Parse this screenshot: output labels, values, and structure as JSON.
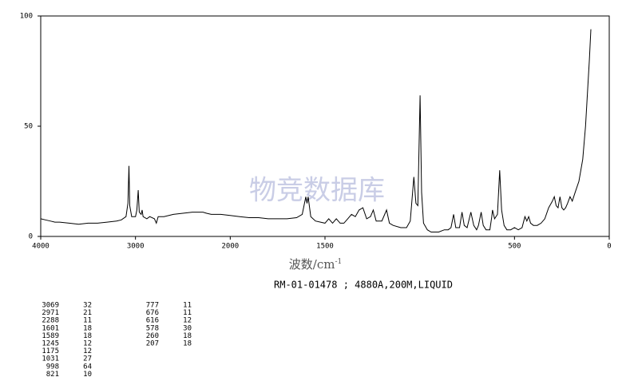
{
  "chart_data": {
    "type": "line",
    "x_label": "波数/cm",
    "x_label_sup": "-1",
    "subtitle": "RM-01-01478 ; 4880A,200M,LIQUID",
    "watermark": "物竞数据库",
    "xlim": [
      4000,
      0
    ],
    "xticks": [
      4000,
      3000,
      2000,
      1500,
      500,
      0
    ],
    "x_scale": {
      "break": 2000,
      "compression_above_break": 0.5
    },
    "ylim": [
      0,
      100
    ],
    "yticks": [
      0,
      50,
      100
    ],
    "color": "#000000",
    "x": [
      4000,
      3950,
      3900,
      3850,
      3800,
      3700,
      3600,
      3500,
      3400,
      3300,
      3200,
      3150,
      3100,
      3080,
      3069,
      3060,
      3040,
      3000,
      2985,
      2971,
      2960,
      2940,
      2930,
      2920,
      2880,
      2850,
      2800,
      2780,
      2760,
      2700,
      2600,
      2500,
      2400,
      2300,
      2288,
      2250,
      2200,
      2100,
      2000,
      1950,
      1900,
      1850,
      1800,
      1750,
      1700,
      1650,
      1620,
      1601,
      1595,
      1589,
      1575,
      1550,
      1500,
      1480,
      1460,
      1440,
      1420,
      1400,
      1380,
      1360,
      1340,
      1320,
      1300,
      1280,
      1260,
      1245,
      1230,
      1200,
      1175,
      1160,
      1140,
      1100,
      1070,
      1050,
      1031,
      1020,
      1010,
      998,
      990,
      980,
      960,
      940,
      900,
      870,
      850,
      835,
      821,
      810,
      790,
      777,
      765,
      750,
      730,
      715,
      700,
      690,
      676,
      665,
      650,
      630,
      620,
      616,
      605,
      590,
      578,
      568,
      555,
      540,
      520,
      500,
      480,
      460,
      445,
      435,
      425,
      415,
      400,
      380,
      360,
      340,
      320,
      300,
      290,
      280,
      270,
      260,
      250,
      240,
      230,
      220,
      207,
      195,
      180,
      160,
      140,
      125,
      115,
      105,
      97
    ],
    "values": [
      8,
      7.5,
      7,
      6.5,
      6.5,
      6,
      5.5,
      6,
      6,
      6.5,
      7,
      7.5,
      9,
      15,
      32,
      14,
      9,
      9,
      12,
      21,
      11,
      10,
      12,
      9,
      8,
      9,
      8,
      6,
      9,
      9,
      10,
      10.5,
      11,
      11,
      11,
      10.5,
      10,
      10,
      9.5,
      9,
      8.5,
      8.5,
      8,
      8,
      8,
      8.5,
      10,
      18,
      15,
      18,
      9,
      7,
      6,
      8,
      6,
      8,
      6,
      6,
      8,
      10,
      9,
      12,
      13,
      8,
      9,
      12,
      7,
      7,
      12,
      6,
      5,
      4,
      4,
      7,
      27,
      15,
      14,
      64,
      20,
      6,
      3,
      2,
      2,
      3,
      3,
      4,
      10,
      4,
      4,
      11,
      5,
      4,
      11,
      5,
      3,
      5,
      11,
      5,
      3,
      3,
      9,
      12,
      8,
      10,
      30,
      12,
      5,
      3,
      3,
      4,
      3,
      4,
      9,
      7,
      9,
      6,
      5,
      5,
      6,
      8,
      13,
      16,
      18,
      14,
      13,
      18,
      13,
      12,
      13,
      15,
      18,
      16,
      20,
      25,
      35,
      50,
      65,
      80,
      94
    ],
    "peaks": [
      [
        3069,
        32
      ],
      [
        2971,
        21
      ],
      [
        2288,
        11
      ],
      [
        1601,
        18
      ],
      [
        1589,
        18
      ],
      [
        1245,
        12
      ],
      [
        1175,
        12
      ],
      [
        1031,
        27
      ],
      [
        998,
        64
      ],
      [
        821,
        10
      ],
      [
        777,
        11
      ],
      [
        676,
        11
      ],
      [
        616,
        12
      ],
      [
        578,
        30
      ],
      [
        260,
        18
      ],
      [
        207,
        18
      ]
    ]
  }
}
